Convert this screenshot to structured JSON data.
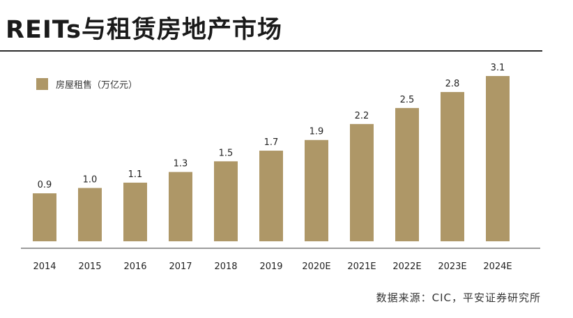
{
  "header": {
    "title": "REITs与租赁房地产市场"
  },
  "chart_data": {
    "type": "bar",
    "categories": [
      "2014",
      "2015",
      "2016",
      "2017",
      "2018",
      "2019",
      "2020E",
      "2021E",
      "2022E",
      "2023E",
      "2024E"
    ],
    "series": [
      {
        "name": "房屋租售（万亿元）",
        "values": [
          0.9,
          1.0,
          1.1,
          1.3,
          1.5,
          1.7,
          1.9,
          2.2,
          2.5,
          2.8,
          3.1
        ]
      }
    ],
    "data_labels": [
      "0.9",
      "1.0",
      "1.1",
      "1.3",
      "1.5",
      "1.7",
      "1.9",
      "2.2",
      "2.5",
      "2.8",
      "3.1"
    ],
    "title": "",
    "xlabel": "",
    "ylabel": "",
    "ylim": [
      0,
      3.1
    ],
    "grid": false,
    "legend": "top-left",
    "colors": {
      "bar": "#ae9767",
      "axis": "#7a7a7a",
      "text": "#222222"
    }
  },
  "footer": {
    "source": "数据来源：CIC，平安证券研究所"
  }
}
